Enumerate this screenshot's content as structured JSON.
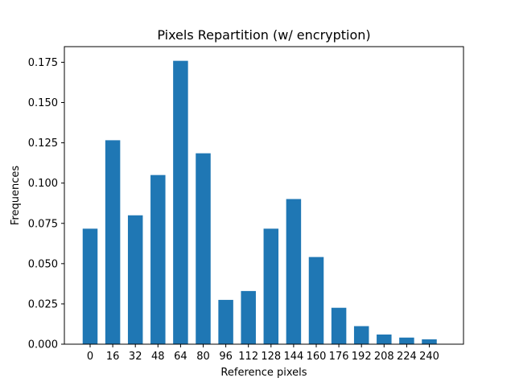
{
  "chart_data": {
    "type": "bar",
    "title": "Pixels Repartition (w/ encryption)",
    "xlabel": "Reference pixels",
    "ylabel": "Frequences",
    "categories": [
      "0",
      "16",
      "32",
      "48",
      "64",
      "80",
      "96",
      "112",
      "128",
      "144",
      "160",
      "176",
      "192",
      "208",
      "224",
      "240"
    ],
    "values": [
      0.0717,
      0.1266,
      0.08,
      0.105,
      0.1759,
      0.1185,
      0.0275,
      0.033,
      0.0717,
      0.0901,
      0.0541,
      0.0226,
      0.0112,
      0.006,
      0.0041,
      0.003
    ],
    "yticks": [
      "0.000",
      "0.025",
      "0.050",
      "0.075",
      "0.100",
      "0.125",
      "0.150",
      "0.175"
    ],
    "ylim": [
      0,
      0.1847
    ],
    "grid": false,
    "bar_color": "#1f77b4"
  }
}
